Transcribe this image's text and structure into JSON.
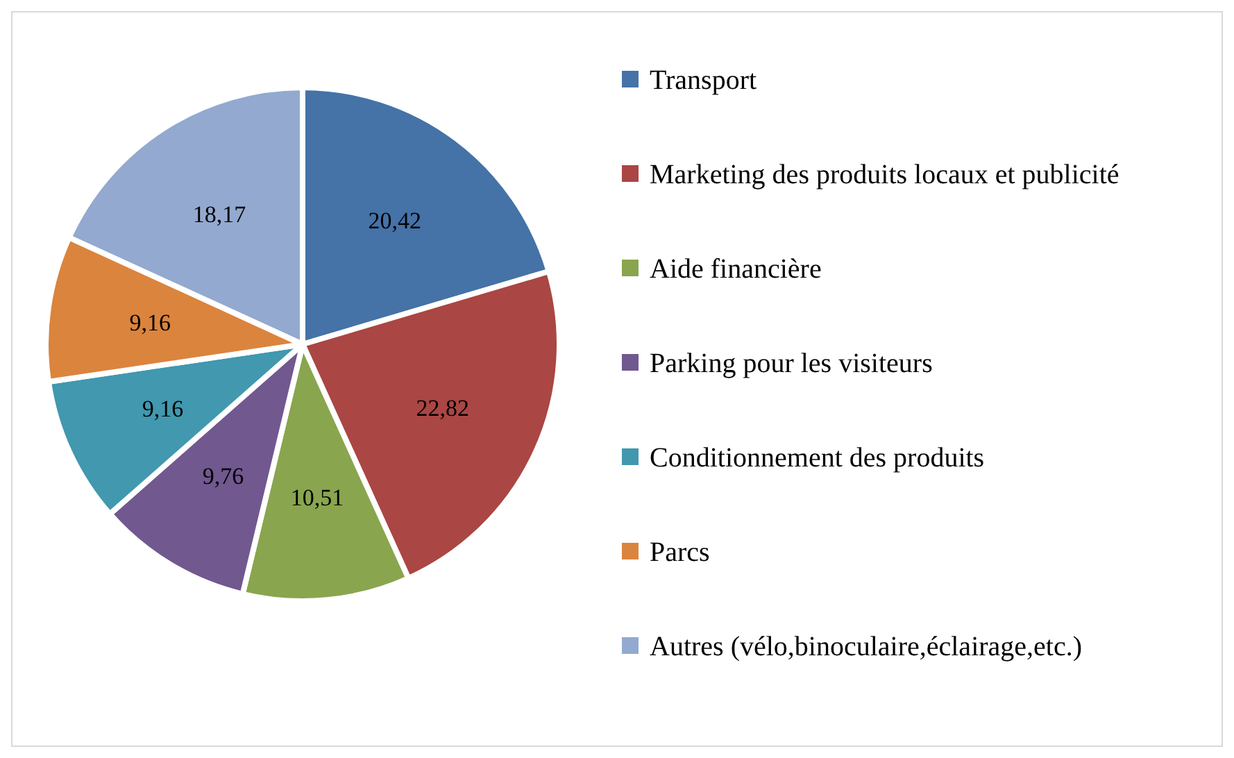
{
  "chart_data": {
    "type": "pie",
    "categories": [
      "Transport",
      "Marketing des produits locaux et publicité",
      "Aide financière",
      "Parking pour les visiteurs",
      "Conditionnement des produits",
      "Parcs",
      "Autres (vélo,binoculaire,éclairage,etc.)"
    ],
    "values": [
      20.42,
      22.82,
      10.51,
      9.76,
      9.16,
      9.16,
      18.17
    ],
    "value_labels": [
      "20,42",
      "22,82",
      "10,51",
      "9,76",
      "9,16",
      "9,16",
      "18,17"
    ],
    "colors": [
      "#4572a7",
      "#aa4643",
      "#89a54e",
      "#71588f",
      "#4198af",
      "#db843d",
      "#93a9cf"
    ],
    "legend": "right"
  }
}
